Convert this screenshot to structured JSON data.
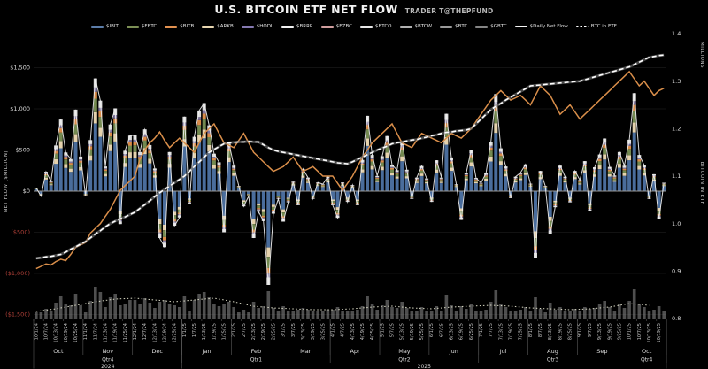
{
  "header": {
    "title": "U.S. BITCOIN ETF NET FLOW",
    "subtitle": "TRADER T@THEPFUND"
  },
  "colors": {
    "background": "#000000",
    "grid": "#191919",
    "zero_line": "#9a9a9a",
    "axis_text": "#dedede",
    "negative_text": "#b04038",
    "date_text": "#c9c9c9",
    "net_flow_line": "#efefef",
    "btc_in_etf_line": "#ffffff",
    "btc_in_etf_casing": "#787878",
    "overlay_line": "#d98e4a",
    "volume_bar": "#8f8f8f",
    "volume_trend": "#d9d9c4",
    "separator": "#5a5a5a",
    "baseline": "#444444"
  },
  "legend": {
    "items": [
      {
        "label": "$IBIT",
        "color": "#5b7ca8",
        "style": "bar"
      },
      {
        "label": "$FBTC",
        "color": "#7c8f55",
        "style": "bar"
      },
      {
        "label": "$BITB",
        "color": "#e29150",
        "style": "bar"
      },
      {
        "label": "$ARKB",
        "color": "#e8d6b0",
        "style": "bar"
      },
      {
        "label": "$HODL",
        "color": "#8579b1",
        "style": "bar"
      },
      {
        "label": "$BRRR",
        "color": "#f0f0f0",
        "style": "bar"
      },
      {
        "label": "$EZBC",
        "color": "#cf9d9d",
        "style": "bar"
      },
      {
        "label": "$BTCO",
        "color": "#e6e6e6",
        "style": "bar"
      },
      {
        "label": "$BTCW",
        "color": "#b0b0b0",
        "style": "bar"
      },
      {
        "label": "$BTC",
        "color": "#9a9a9a",
        "style": "bar"
      },
      {
        "label": "$GBTC",
        "color": "#858585",
        "style": "bar"
      },
      {
        "label": "$Daily Net Flow",
        "color": "#f5f5f5",
        "style": "line"
      },
      {
        "label": "BTC in ETF",
        "color": "#ffffff",
        "style": "dashed"
      }
    ]
  },
  "chart_data": {
    "type": "bar",
    "title": "U.S. BITCOIN ETF NET FLOW",
    "ylabel_left": "NET FLOW ($MILLION)",
    "ylabel_right": "BITCOIN IN ETF",
    "right_axis_units": "MILLIONS",
    "ylim_left": [
      -1500,
      1500
    ],
    "ylim_right": [
      0.8,
      1.4
    ],
    "left_ticks": [
      {
        "label": "$1,500",
        "value": 1500,
        "negative": false
      },
      {
        "label": "$1,000",
        "value": 1000,
        "negative": false
      },
      {
        "label": "$500",
        "value": 500,
        "negative": false
      },
      {
        "label": "$0",
        "value": 0,
        "negative": false
      },
      {
        "label": "($500)",
        "value": -500,
        "negative": true
      },
      {
        "label": "($1,000)",
        "value": -1000,
        "negative": true
      },
      {
        "label": "($1,500)",
        "value": -1500,
        "negative": true
      }
    ],
    "right_ticks": [
      {
        "label": "1.4",
        "value": 1.4
      },
      {
        "label": "1.3",
        "value": 1.3
      },
      {
        "label": "1.2",
        "value": 1.2
      },
      {
        "label": "1.1",
        "value": 1.1
      },
      {
        "label": "1.0",
        "value": 1.0
      },
      {
        "label": "0.9",
        "value": 0.9
      },
      {
        "label": "0.8",
        "value": 0.8
      }
    ],
    "x_dates": [
      "10/1/24",
      "10/7/24",
      "10/13/24",
      "10/19/24",
      "10/25/24",
      "11/1/24",
      "11/7/24",
      "11/13/24",
      "11/19/24",
      "11/25/24",
      "12/1/24",
      "12/7/24",
      "12/13/24",
      "12/19/24",
      "12/25/24",
      "1/1/25",
      "1/7/25",
      "1/13/25",
      "1/19/25",
      "1/25/25",
      "2/1/25",
      "2/7/25",
      "2/13/25",
      "2/19/25",
      "2/25/25",
      "3/1/25",
      "3/7/25",
      "3/13/25",
      "3/19/25",
      "3/25/25",
      "4/1/25",
      "4/7/25",
      "4/13/25",
      "4/19/25",
      "4/25/25",
      "5/1/25",
      "5/7/25",
      "5/13/25",
      "5/19/25",
      "5/25/25",
      "6/1/25",
      "6/7/25",
      "6/13/25",
      "6/19/25",
      "6/25/25",
      "7/1/25",
      "7/7/25",
      "7/13/25",
      "7/19/25",
      "7/25/25",
      "8/1/25",
      "8/7/25",
      "8/13/25",
      "8/19/25",
      "8/25/25",
      "9/1/25",
      "9/7/25",
      "9/13/25",
      "9/19/25",
      "9/25/25",
      "10/1/25",
      "10/7/25",
      "10/13/25",
      "10/19/25"
    ],
    "buckets_per_date_label": 2,
    "months": [
      {
        "label": "Oct",
        "s": 0,
        "e": 9
      },
      {
        "label": "Nov",
        "s": 10,
        "e": 19
      },
      {
        "label": "Dec",
        "s": 20,
        "e": 29
      },
      {
        "label": "Jan",
        "s": 30,
        "e": 39
      },
      {
        "label": "Feb",
        "s": 40,
        "e": 49
      },
      {
        "label": "Mar",
        "s": 50,
        "e": 59
      },
      {
        "label": "Apr",
        "s": 60,
        "e": 69
      },
      {
        "label": "May",
        "s": 70,
        "e": 79
      },
      {
        "label": "Jun",
        "s": 80,
        "e": 89
      },
      {
        "label": "Jul",
        "s": 90,
        "e": 99
      },
      {
        "label": "Aug",
        "s": 100,
        "e": 109
      },
      {
        "label": "Sep",
        "s": 110,
        "e": 119
      },
      {
        "label": "Oct",
        "s": 120,
        "e": 127
      }
    ],
    "quarters": [
      {
        "label": "Qtr4",
        "s": 0,
        "e": 29
      },
      {
        "label": "Qtr1",
        "s": 30,
        "e": 59
      },
      {
        "label": "Qtr2",
        "s": 60,
        "e": 89
      },
      {
        "label": "Qtr3",
        "s": 90,
        "e": 119
      },
      {
        "label": "Qtr4",
        "s": 120,
        "e": 127
      }
    ],
    "years": [
      {
        "label": "2024",
        "s": 0,
        "e": 29
      },
      {
        "label": "2025",
        "s": 30,
        "e": 127
      }
    ],
    "stack": [
      {
        "etf": "$IBIT",
        "color": "#4a6d9c",
        "f": 0.6
      },
      {
        "etf": "$ARKB",
        "color": "#e5d2ad",
        "f": 0.1
      },
      {
        "etf": "$FBTC",
        "color": "#738950",
        "f": 0.12
      },
      {
        "etf": "$BITB",
        "color": "#d98b49",
        "f": 0.06
      },
      {
        "etf": "$HODL",
        "color": "#80759f",
        "f": 0.04
      },
      {
        "etf": "$BRRR",
        "color": "#dedede",
        "f": 0.08
      }
    ],
    "net_flow": [
      40,
      -60,
      235,
      120,
      555,
      870,
      470,
      390,
      990,
      420,
      -55,
      620,
      1370,
      1100,
      300,
      810,
      1005,
      -400,
      490,
      675,
      680,
      475,
      750,
      560,
      275,
      -570,
      -680,
      475,
      -420,
      -320,
      905,
      -150,
      660,
      980,
      1070,
      800,
      455,
      350,
      -500,
      590,
      310,
      65,
      -185,
      -60,
      -570,
      -250,
      -365,
      -1140,
      -275,
      -94,
      -370,
      -135,
      115,
      -170,
      270,
      165,
      -93,
      105,
      85,
      175,
      -170,
      -325,
      105,
      -130,
      75,
      -170,
      380,
      915,
      440,
      185,
      425,
      670,
      320,
      255,
      605,
      260,
      -95,
      165,
      305,
      155,
      -130,
      375,
      165,
      940,
      410,
      85,
      -350,
      220,
      500,
      160,
      100,
      215,
      600,
      1180,
      520,
      300,
      -85,
      175,
      225,
      325,
      90,
      -815,
      245,
      65,
      -520,
      -195,
      310,
      175,
      -135,
      245,
      135,
      365,
      -245,
      290,
      445,
      640,
      295,
      190,
      475,
      310,
      625,
      1190,
      440,
      315,
      -95,
      205,
      -340,
      102
    ],
    "btc_in_etf": [
      0.927,
      0.928,
      0.93,
      0.931,
      0.933,
      0.935,
      0.94,
      0.946,
      0.951,
      0.957,
      0.962,
      0.97,
      0.978,
      0.985,
      0.993,
      1.0,
      1.005,
      1.01,
      1.014,
      1.019,
      1.024,
      1.032,
      1.04,
      1.048,
      1.057,
      1.065,
      1.072,
      1.079,
      1.086,
      1.093,
      1.1,
      1.11,
      1.12,
      1.13,
      1.14,
      1.15,
      1.156,
      1.162,
      1.168,
      1.17,
      1.171,
      1.172,
      1.172,
      1.173,
      1.172,
      1.172,
      1.166,
      1.16,
      1.155,
      1.152,
      1.15,
      1.148,
      1.146,
      1.144,
      1.142,
      1.14,
      1.138,
      1.136,
      1.134,
      1.132,
      1.13,
      1.128,
      1.127,
      1.126,
      1.13,
      1.135,
      1.14,
      1.145,
      1.15,
      1.155,
      1.159,
      1.163,
      1.168,
      1.17,
      1.172,
      1.174,
      1.176,
      1.177,
      1.18,
      1.182,
      1.185,
      1.187,
      1.19,
      1.192,
      1.193,
      1.195,
      1.196,
      1.197,
      1.2,
      1.21,
      1.22,
      1.23,
      1.24,
      1.247,
      1.253,
      1.26,
      1.266,
      1.272,
      1.278,
      1.284,
      1.29,
      1.291,
      1.292,
      1.293,
      1.294,
      1.295,
      1.296,
      1.297,
      1.298,
      1.299,
      1.3,
      1.303,
      1.306,
      1.309,
      1.312,
      1.315,
      1.318,
      1.321,
      1.324,
      1.327,
      1.33,
      1.335,
      1.34,
      1.345,
      1.35,
      1.352,
      1.354,
      1.355
    ],
    "overlay_line_right_axis": [
      0.905,
      0.91,
      0.915,
      0.913,
      0.92,
      0.925,
      0.922,
      0.935,
      0.95,
      0.955,
      0.96,
      0.98,
      0.99,
      1.0,
      1.015,
      1.03,
      1.05,
      1.07,
      1.08,
      1.09,
      1.1,
      1.135,
      1.155,
      1.17,
      1.18,
      1.193,
      1.175,
      1.16,
      1.17,
      1.18,
      1.17,
      1.16,
      1.15,
      1.17,
      1.19,
      1.2,
      1.21,
      1.19,
      1.17,
      1.165,
      1.16,
      1.175,
      1.19,
      1.17,
      1.15,
      1.14,
      1.13,
      1.12,
      1.11,
      1.115,
      1.12,
      1.13,
      1.14,
      1.125,
      1.11,
      1.115,
      1.12,
      1.11,
      1.1,
      1.1,
      1.1,
      1.085,
      1.07,
      1.085,
      1.1,
      1.12,
      1.14,
      1.155,
      1.17,
      1.18,
      1.19,
      1.2,
      1.21,
      1.19,
      1.17,
      1.165,
      1.16,
      1.175,
      1.19,
      1.185,
      1.18,
      1.175,
      1.17,
      1.18,
      1.19,
      1.185,
      1.18,
      1.19,
      1.2,
      1.215,
      1.23,
      1.245,
      1.26,
      1.27,
      1.28,
      1.27,
      1.26,
      1.265,
      1.27,
      1.26,
      1.25,
      1.27,
      1.29,
      1.28,
      1.27,
      1.25,
      1.23,
      1.24,
      1.25,
      1.235,
      1.22,
      1.23,
      1.24,
      1.25,
      1.26,
      1.27,
      1.28,
      1.29,
      1.3,
      1.31,
      1.32,
      1.305,
      1.29,
      1.3,
      1.285,
      1.27,
      1.28,
      1.285
    ],
    "volume": [
      7,
      7,
      11,
      9,
      18,
      25,
      16,
      15,
      28,
      15,
      7,
      20,
      36,
      30,
      13,
      24,
      28,
      15,
      17,
      21,
      21,
      17,
      23,
      18,
      12,
      19,
      21,
      17,
      15,
      13,
      26,
      9,
      21,
      28,
      30,
      24,
      16,
      14,
      17,
      19,
      13,
      7,
      10,
      7,
      19,
      12,
      14,
      31,
      12,
      8,
      14,
      9,
      9,
      10,
      12,
      10,
      8,
      9,
      8,
      10,
      10,
      13,
      8,
      9,
      8,
      10,
      14,
      26,
      16,
      10,
      15,
      21,
      13,
      12,
      19,
      12,
      8,
      9,
      13,
      9,
      9,
      14,
      9,
      27,
      15,
      8,
      14,
      11,
      17,
      9,
      8,
      10,
      19,
      32,
      17,
      13,
      8,
      9,
      10,
      13,
      8,
      24,
      11,
      7,
      18,
      10,
      13,
      9,
      9,
      11,
      9,
      13,
      11,
      12,
      16,
      20,
      13,
      9,
      16,
      12,
      20,
      33,
      16,
      13,
      8,
      10,
      14,
      9
    ],
    "volume_trend": [
      8,
      11,
      15,
      19,
      22,
      23,
      21,
      19,
      21,
      23,
      19,
      14,
      12,
      11,
      10,
      10,
      11,
      13,
      14,
      12,
      11,
      13,
      14,
      15,
      14,
      12,
      11,
      10,
      11,
      13,
      17,
      15
    ],
    "volume_trend_stride": 4
  }
}
